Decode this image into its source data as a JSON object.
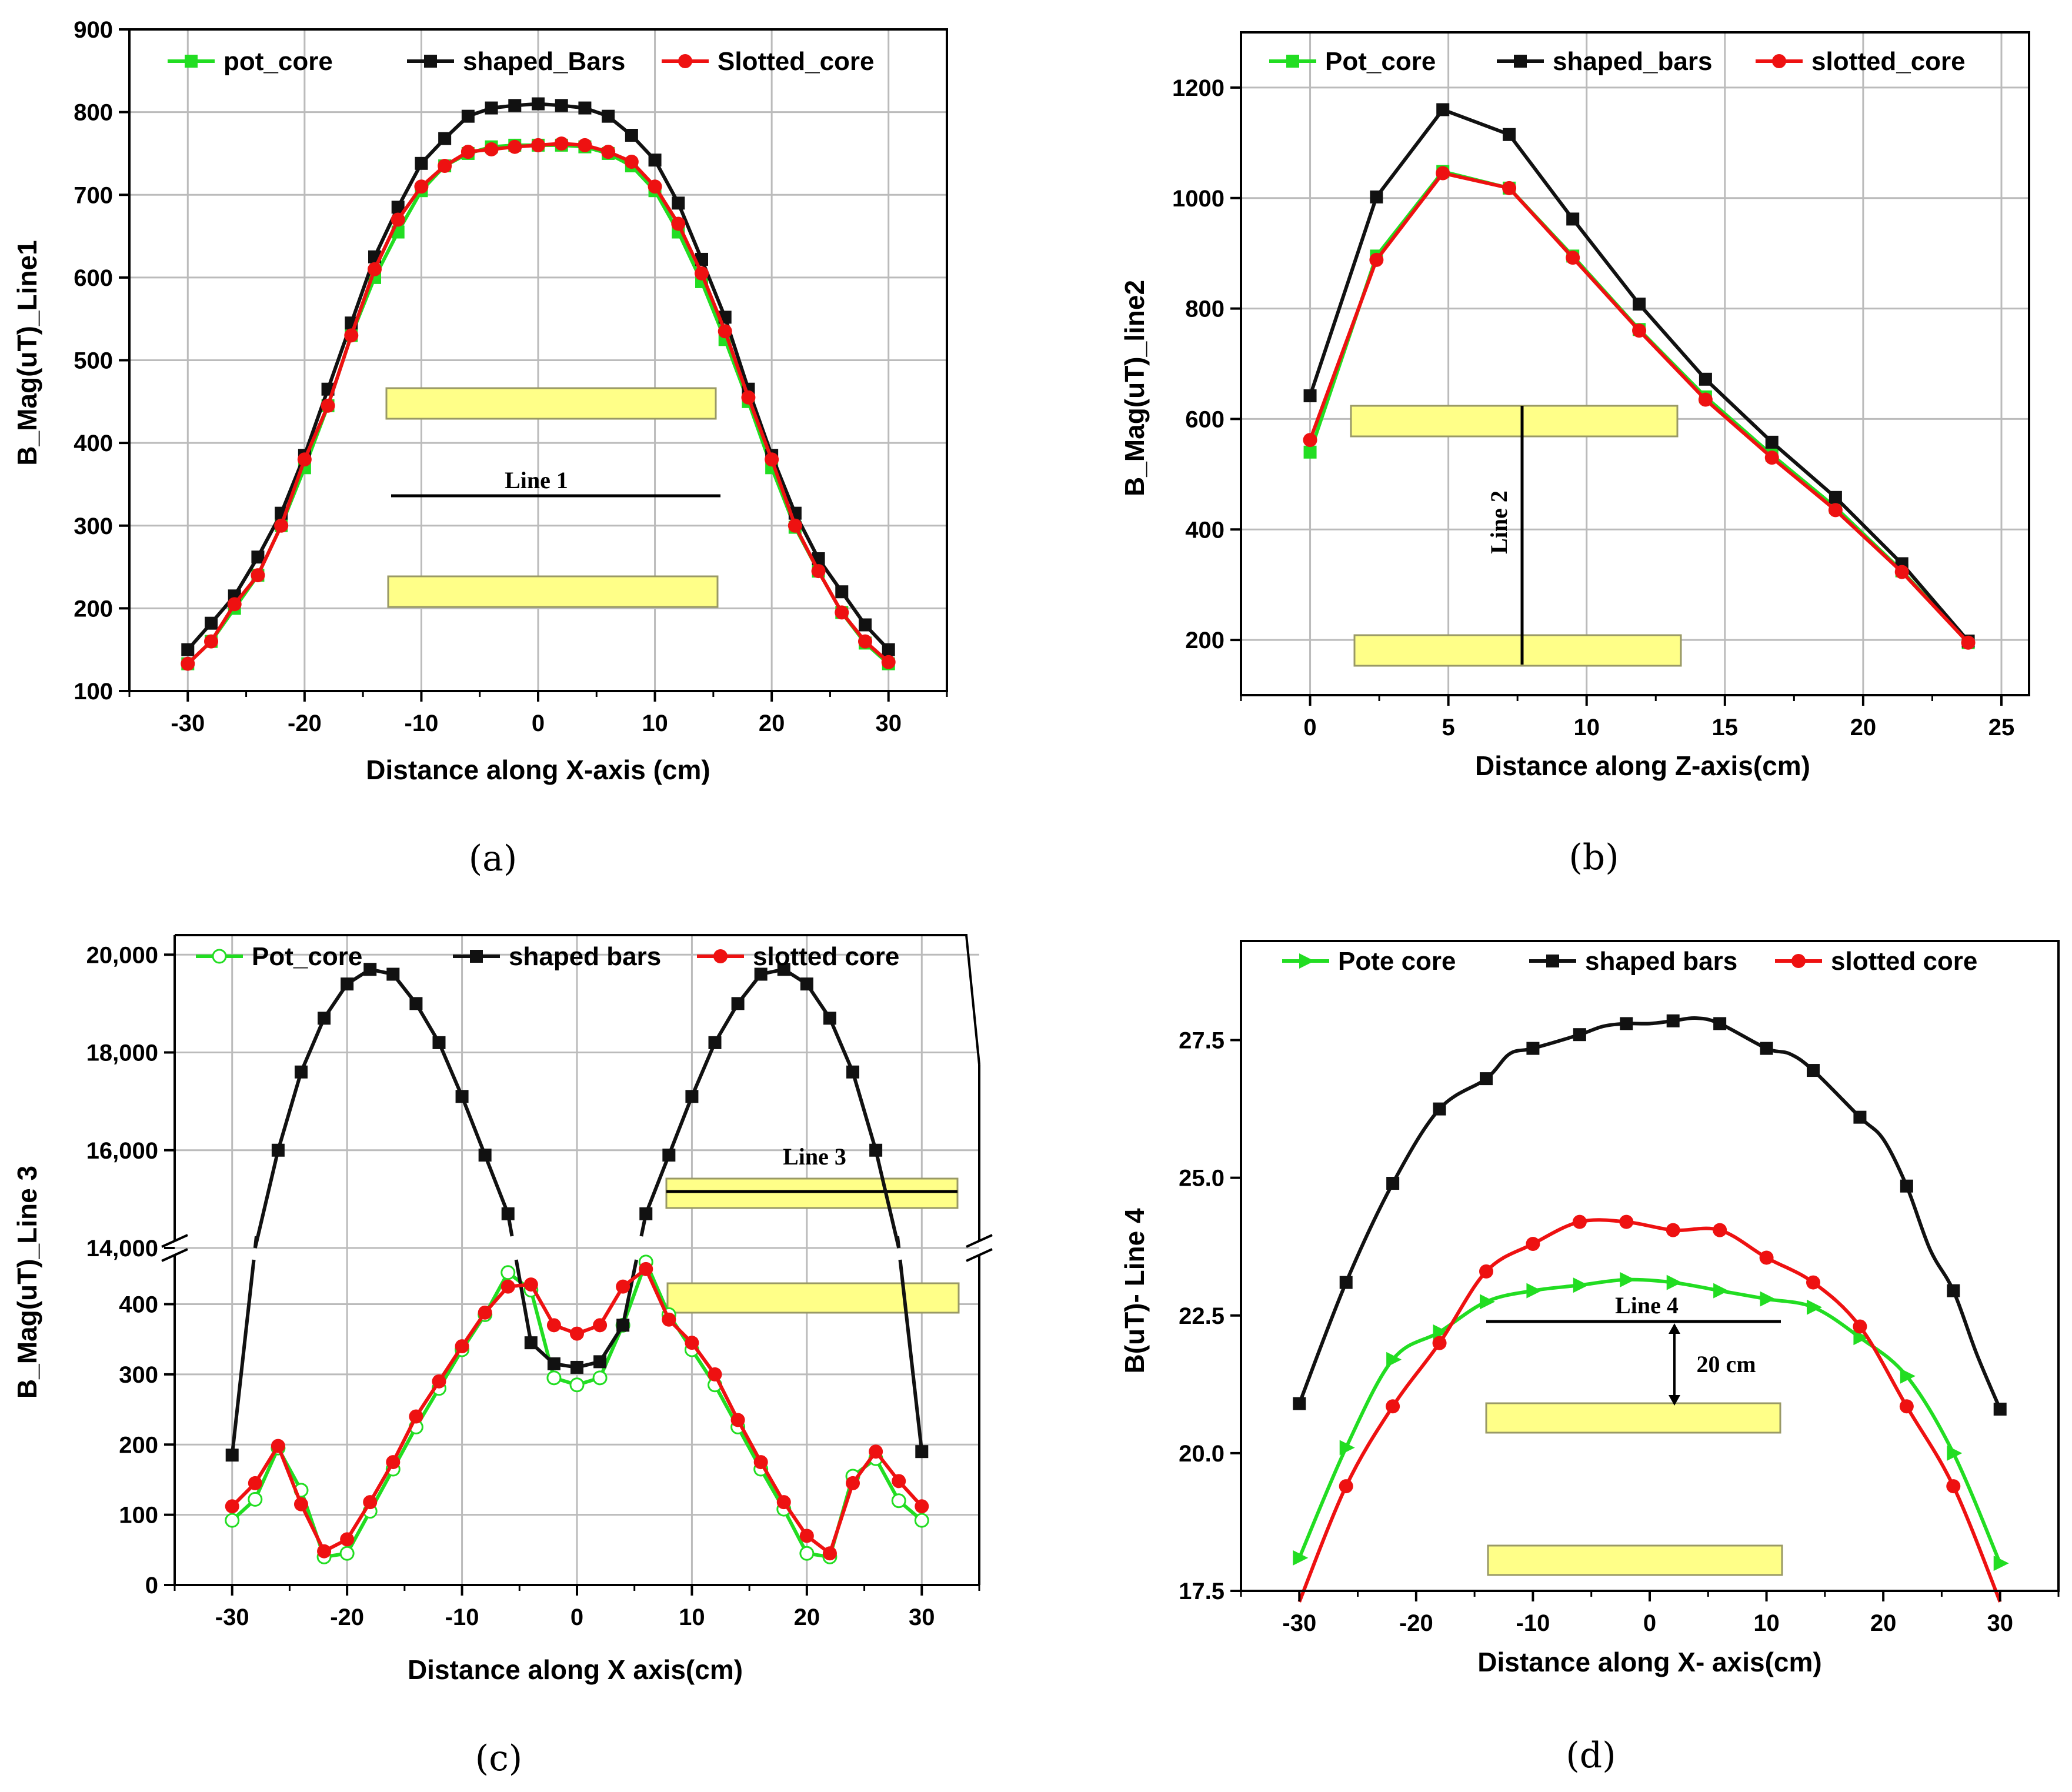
{
  "colors": {
    "pot": "#22dd22",
    "shaped": "#111111",
    "slotted": "#ee1111",
    "grid": "#bbbbbb",
    "rect_fill": "#ffff88",
    "rect_stroke": "#999966"
  },
  "chart_data": [
    {
      "type": "line",
      "caption": "(a)",
      "xlabel": "Distance along X-axis (cm)",
      "ylabel": "B_Mag(uT)_Line1",
      "xlim": [
        -35,
        35
      ],
      "ylim": [
        100,
        900
      ],
      "xticks": [
        -30,
        -20,
        -10,
        0,
        10,
        20,
        30
      ],
      "yticks": [
        100,
        200,
        300,
        400,
        500,
        600,
        700,
        800,
        900
      ],
      "grid": true,
      "legend": "top",
      "annotation": "Line 1",
      "series": [
        {
          "name": "pot_core",
          "marker": "square",
          "x": [
            -30,
            -28,
            -26,
            -24,
            -22,
            -20,
            -18,
            -16,
            -14,
            -12,
            -10,
            -8,
            -6,
            -4,
            -2,
            0,
            2,
            4,
            6,
            8,
            10,
            12,
            14,
            16,
            18,
            20,
            22,
            24,
            26,
            28,
            30
          ],
          "y": [
            133,
            160,
            200,
            240,
            300,
            370,
            445,
            530,
            600,
            655,
            705,
            735,
            750,
            758,
            760,
            760,
            760,
            758,
            750,
            735,
            705,
            655,
            595,
            525,
            450,
            370,
            298,
            245,
            195,
            158,
            133
          ]
        },
        {
          "name": "shaped_Bars",
          "marker": "square",
          "x": [
            -30,
            -28,
            -26,
            -24,
            -22,
            -20,
            -18,
            -16,
            -14,
            -12,
            -10,
            -8,
            -6,
            -4,
            -2,
            0,
            2,
            4,
            6,
            8,
            10,
            12,
            14,
            16,
            18,
            20,
            22,
            24,
            26,
            28,
            30
          ],
          "y": [
            150,
            182,
            215,
            262,
            315,
            385,
            465,
            545,
            625,
            685,
            738,
            768,
            795,
            805,
            808,
            810,
            808,
            805,
            795,
            772,
            742,
            690,
            622,
            552,
            465,
            385,
            315,
            260,
            220,
            180,
            150
          ]
        },
        {
          "name": "Slotted_core",
          "marker": "circle",
          "x": [
            -30,
            -28,
            -26,
            -24,
            -22,
            -20,
            -18,
            -16,
            -14,
            -12,
            -10,
            -8,
            -6,
            -4,
            -2,
            0,
            2,
            4,
            6,
            8,
            10,
            12,
            14,
            16,
            18,
            20,
            22,
            24,
            26,
            28,
            30
          ],
          "y": [
            133,
            160,
            205,
            240,
            300,
            380,
            445,
            530,
            610,
            670,
            710,
            735,
            752,
            755,
            758,
            760,
            762,
            760,
            752,
            740,
            710,
            665,
            605,
            535,
            455,
            380,
            300,
            245,
            195,
            160,
            135
          ]
        }
      ]
    },
    {
      "type": "line",
      "caption": "(b)",
      "xlabel": "Distance along Z-axis(cm)",
      "ylabel": "B_Mag(uT)_line2",
      "xlim": [
        -2.5,
        26
      ],
      "ylim": [
        100,
        1300
      ],
      "xticks": [
        0,
        5,
        10,
        15,
        20,
        25
      ],
      "yticks": [
        200,
        400,
        600,
        800,
        1000,
        1200
      ],
      "grid": true,
      "legend": "top",
      "annotation": "Line 2",
      "series": [
        {
          "name": "Pot_core",
          "marker": "square",
          "x": [
            0,
            2.4,
            4.8,
            7.2,
            9.5,
            11.9,
            14.3,
            16.7,
            19.0,
            21.4,
            23.8
          ],
          "y": [
            540,
            895,
            1048,
            1018,
            895,
            762,
            640,
            535,
            440,
            325,
            195
          ]
        },
        {
          "name": "shaped_bars",
          "marker": "square",
          "x": [
            0,
            2.4,
            4.8,
            7.2,
            9.5,
            11.9,
            14.3,
            16.7,
            19.0,
            21.4,
            23.8
          ],
          "y": [
            642,
            1002,
            1160,
            1115,
            962,
            808,
            672,
            558,
            458,
            338,
            198
          ]
        },
        {
          "name": "slotted_core",
          "marker": "circle",
          "x": [
            0,
            2.4,
            4.8,
            7.2,
            9.5,
            11.9,
            14.3,
            16.7,
            19.0,
            21.4,
            23.8
          ],
          "y": [
            562,
            888,
            1045,
            1018,
            892,
            760,
            635,
            530,
            435,
            323,
            195
          ]
        }
      ]
    },
    {
      "type": "line",
      "caption": "(c)",
      "xlabel": "Distance along X axis(cm)",
      "ylabel": "B_Mag(uT)_Line 3",
      "xlim": [
        -35,
        35
      ],
      "ylim_lower": [
        0,
        480
      ],
      "ylim_upper": [
        14000,
        20400
      ],
      "broken_axis": true,
      "xticks": [
        -30,
        -20,
        -10,
        0,
        10,
        20,
        30
      ],
      "yticks_lower": [
        0,
        100,
        200,
        300,
        400
      ],
      "yticks_upper": [
        14000,
        16000,
        18000,
        20000
      ],
      "ytick_labels_lower": [
        "0",
        "100",
        "200",
        "300",
        "400"
      ],
      "ytick_labels_upper": [
        "14,000",
        "16,000",
        "18,000",
        "20,000"
      ],
      "grid": true,
      "legend": "top",
      "annotation": "Line 3",
      "series": [
        {
          "name": "Pot_core",
          "marker": "open-circle",
          "x": [
            -30,
            -28,
            -26,
            -24,
            -22,
            -20,
            -18,
            -16,
            -14,
            -12,
            -10,
            -8,
            -6,
            -4,
            -2,
            0,
            2,
            4,
            6,
            8,
            10,
            12,
            14,
            16,
            18,
            20,
            22,
            24,
            26,
            28,
            30
          ],
          "y": [
            92,
            122,
            195,
            135,
            40,
            45,
            105,
            165,
            225,
            280,
            335,
            385,
            445,
            420,
            295,
            285,
            295,
            370,
            460,
            385,
            335,
            285,
            225,
            165,
            108,
            45,
            40,
            155,
            180,
            120,
            92
          ]
        },
        {
          "name": "shaped bars",
          "marker": "square",
          "x": [
            -30,
            -28,
            -26,
            -24,
            -22,
            -20,
            -18,
            -16,
            -14,
            -12,
            -10,
            -8,
            -6,
            -4,
            -2,
            0,
            2,
            4,
            6,
            8,
            10,
            12,
            14,
            16,
            18,
            20,
            22,
            24,
            26,
            28,
            30
          ],
          "y": [
            185,
            14000,
            16000,
            17600,
            18700,
            19400,
            19700,
            19600,
            19000,
            18200,
            17100,
            15900,
            14700,
            345,
            315,
            310,
            318,
            370,
            14700,
            15900,
            17100,
            18200,
            19000,
            19600,
            19700,
            19400,
            18700,
            17600,
            16000,
            14000,
            190
          ]
        },
        {
          "name": "slotted core",
          "marker": "circle",
          "x": [
            -30,
            -28,
            -26,
            -24,
            -22,
            -20,
            -18,
            -16,
            -14,
            -12,
            -10,
            -8,
            -6,
            -4,
            -2,
            0,
            2,
            4,
            6,
            8,
            10,
            12,
            14,
            16,
            18,
            20,
            22,
            24,
            26,
            28,
            30
          ],
          "y": [
            112,
            145,
            198,
            115,
            48,
            65,
            118,
            175,
            240,
            290,
            340,
            388,
            425,
            428,
            370,
            358,
            370,
            425,
            450,
            378,
            345,
            300,
            235,
            175,
            118,
            70,
            45,
            145,
            190,
            148,
            112
          ]
        }
      ]
    },
    {
      "type": "line",
      "caption": "(d)",
      "xlabel": "Distance along X- axis(cm)",
      "ylabel": "B(uT)- Line 4",
      "xlim": [
        -35,
        35
      ],
      "ylim": [
        17.5,
        29.3
      ],
      "xticks": [
        -30,
        -20,
        -10,
        0,
        10,
        20,
        30
      ],
      "yticks": [
        17.5,
        20.0,
        22.5,
        25.0,
        27.5
      ],
      "ytick_labels": [
        "17.5",
        "20.0",
        "22.5",
        "25.0",
        "27.5"
      ],
      "grid": false,
      "legend": "top",
      "annotation": "Line 4",
      "annotation_2": "20 cm",
      "series": [
        {
          "name": "Pote core",
          "marker": "triangle",
          "x": [
            -30,
            -26,
            -22,
            -18,
            -14,
            -10,
            -6,
            -2,
            2,
            6,
            10,
            14,
            18,
            22,
            26,
            30
          ],
          "y": [
            18.1,
            20.1,
            21.7,
            22.2,
            22.75,
            22.95,
            23.05,
            23.15,
            23.1,
            22.95,
            22.8,
            22.65,
            22.1,
            21.4,
            20.0,
            18.0
          ]
        },
        {
          "name": "shaped bars",
          "marker": "square",
          "x": [
            -30,
            -26,
            -22,
            -18,
            -14,
            -12,
            -10,
            -6,
            -4,
            -2,
            0,
            2,
            4,
            6,
            10,
            12,
            14,
            18,
            20,
            22,
            24,
            26,
            28,
            30
          ],
          "y": [
            20.9,
            23.1,
            24.9,
            26.25,
            26.8,
            27.25,
            27.35,
            27.6,
            27.75,
            27.8,
            27.8,
            27.85,
            27.9,
            27.8,
            27.35,
            27.25,
            26.95,
            26.1,
            25.7,
            24.85,
            23.7,
            22.95,
            21.8,
            20.8
          ]
        },
        {
          "name": "slotted core",
          "marker": "circle",
          "x": [
            -30,
            -26,
            -22,
            -18,
            -14,
            -10,
            -6,
            -2,
            2,
            6,
            10,
            14,
            18,
            22,
            26,
            30
          ],
          "y": [
            17.3,
            19.4,
            20.85,
            22.0,
            23.3,
            23.8,
            24.2,
            24.2,
            24.05,
            24.05,
            23.55,
            23.1,
            22.3,
            20.85,
            19.4,
            17.3
          ]
        }
      ]
    }
  ]
}
